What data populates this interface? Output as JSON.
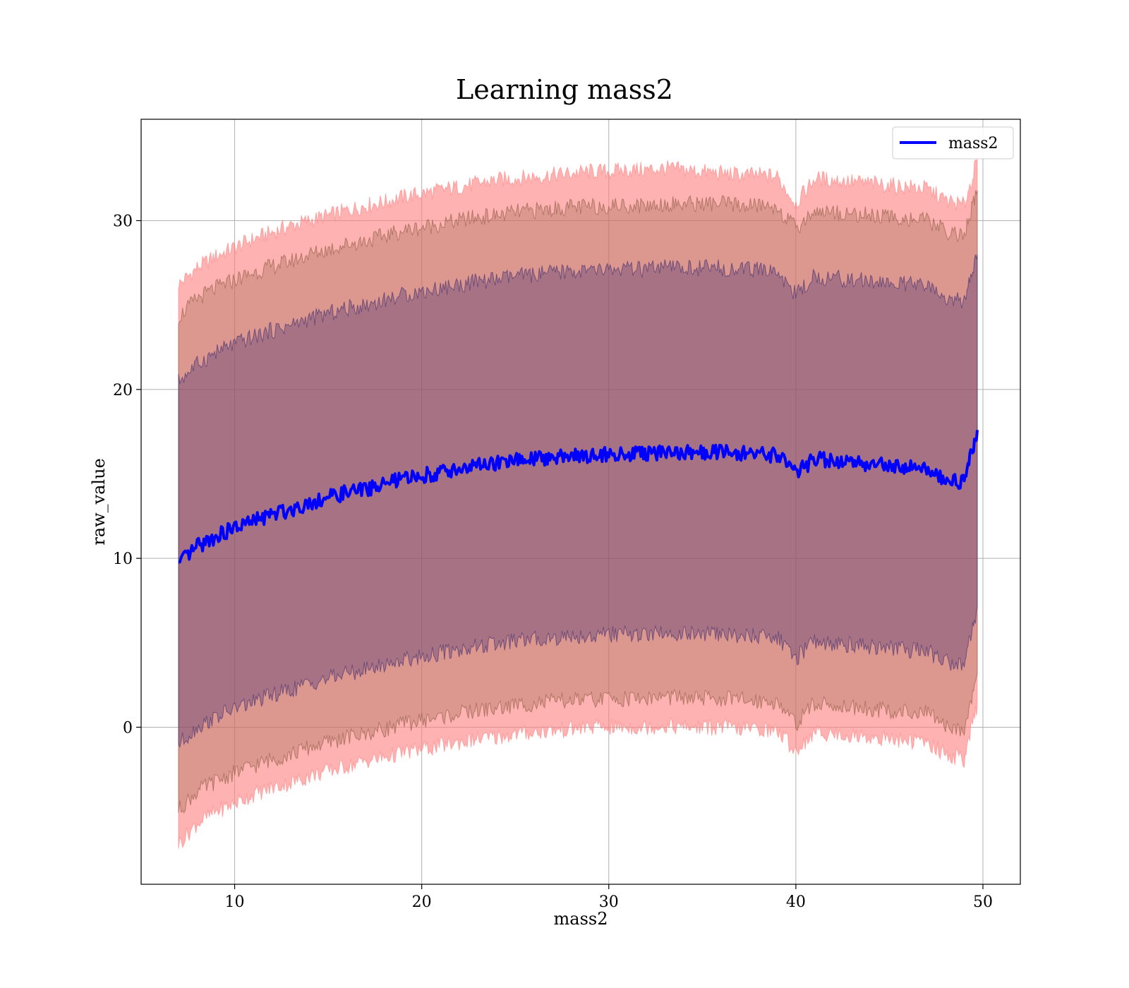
{
  "chart_data": {
    "type": "area",
    "title": "Learning mass2",
    "xlabel": "mass2",
    "ylabel": "raw_value",
    "xlim": [
      5,
      52
    ],
    "ylim": [
      -9.3,
      36
    ],
    "xticks": [
      10,
      20,
      30,
      40,
      50
    ],
    "yticks": [
      0,
      10,
      20,
      30
    ],
    "grid": true,
    "legend_position": "top-right",
    "colors": {
      "line": "#0000ff",
      "outer_band": "#ff7f7f",
      "middle_band": "#c4906f",
      "inner_band": "#a0707a",
      "grid": "#b0b0b0"
    },
    "x": [
      7,
      8,
      9,
      10,
      11,
      12,
      13,
      14,
      15,
      16,
      17,
      18,
      19,
      20,
      21,
      22,
      23,
      24,
      25,
      26,
      27,
      28,
      29,
      30,
      31,
      32,
      33,
      34,
      35,
      36,
      37,
      38,
      39,
      40,
      41,
      42,
      43,
      44,
      45,
      46,
      47,
      48,
      49,
      49.7
    ],
    "series": [
      {
        "name": "mass2",
        "role": "mean",
        "values": [
          9.6,
          10.7,
          11.3,
          11.8,
          12.2,
          12.6,
          12.9,
          13.3,
          13.6,
          13.9,
          14.1,
          14.4,
          14.7,
          14.9,
          15.1,
          15.3,
          15.5,
          15.6,
          15.8,
          15.9,
          16.0,
          16.1,
          16.1,
          16.2,
          16.2,
          16.2,
          16.3,
          16.3,
          16.3,
          16.3,
          16.2,
          16.2,
          16.1,
          15.0,
          15.9,
          15.8,
          15.7,
          15.6,
          15.5,
          15.4,
          15.3,
          14.7,
          14.5,
          17.6
        ]
      },
      {
        "role": "band_outer_upper",
        "values": [
          26.2,
          27.2,
          27.9,
          28.4,
          28.9,
          29.3,
          29.7,
          30.0,
          30.3,
          30.6,
          30.9,
          31.1,
          31.4,
          31.6,
          31.8,
          32.0,
          32.2,
          32.4,
          32.5,
          32.6,
          32.7,
          32.8,
          32.9,
          32.9,
          33.0,
          33.0,
          33.1,
          33.0,
          32.9,
          32.8,
          32.7,
          32.7,
          32.6,
          31.0,
          32.5,
          32.4,
          32.3,
          32.2,
          32.1,
          32.0,
          31.9,
          31.2,
          30.9,
          33.6
        ]
      },
      {
        "role": "band_outer_lower",
        "values": [
          -6.9,
          -5.7,
          -5.0,
          -4.5,
          -4.0,
          -3.6,
          -3.3,
          -2.9,
          -2.6,
          -2.3,
          -2.0,
          -1.8,
          -1.5,
          -1.3,
          -1.1,
          -0.9,
          -0.7,
          -0.6,
          -0.4,
          -0.3,
          -0.2,
          -0.1,
          0.0,
          0.0,
          0.0,
          0.0,
          0.1,
          0.0,
          0.0,
          0.0,
          -0.1,
          -0.1,
          -0.2,
          -1.4,
          -0.3,
          -0.4,
          -0.5,
          -0.6,
          -0.7,
          -0.8,
          -0.9,
          -1.6,
          -1.9,
          1.3
        ]
      },
      {
        "role": "band_middle_upper",
        "values": [
          24.3,
          25.4,
          26.0,
          26.5,
          26.9,
          27.3,
          27.6,
          28.0,
          28.3,
          28.6,
          28.8,
          29.1,
          29.4,
          29.6,
          29.8,
          30.0,
          30.2,
          30.3,
          30.5,
          30.6,
          30.7,
          30.8,
          30.8,
          30.9,
          30.9,
          30.9,
          31.0,
          31.0,
          31.0,
          31.0,
          30.9,
          30.9,
          30.8,
          29.5,
          30.6,
          30.5,
          30.4,
          30.3,
          30.2,
          30.1,
          30.0,
          29.4,
          29.1,
          31.8
        ]
      },
      {
        "role": "band_middle_lower",
        "values": [
          -4.9,
          -3.8,
          -3.2,
          -2.7,
          -2.3,
          -1.9,
          -1.6,
          -1.2,
          -0.9,
          -0.6,
          -0.4,
          -0.1,
          0.2,
          0.4,
          0.6,
          0.8,
          1.0,
          1.1,
          1.3,
          1.4,
          1.5,
          1.6,
          1.6,
          1.7,
          1.7,
          1.7,
          1.8,
          1.7,
          1.7,
          1.7,
          1.6,
          1.6,
          1.5,
          0.2,
          1.4,
          1.3,
          1.2,
          1.1,
          1.0,
          0.9,
          0.8,
          0.1,
          -0.1,
          3.2
        ]
      },
      {
        "role": "band_inner_upper",
        "values": [
          20.5,
          21.5,
          22.2,
          22.7,
          23.1,
          23.5,
          23.8,
          24.2,
          24.5,
          24.8,
          25.0,
          25.3,
          25.6,
          25.8,
          26.0,
          26.2,
          26.4,
          26.5,
          26.7,
          26.8,
          26.9,
          27.0,
          27.0,
          27.1,
          27.1,
          27.1,
          27.2,
          27.2,
          27.2,
          27.2,
          27.1,
          27.1,
          27.0,
          25.6,
          26.7,
          26.6,
          26.5,
          26.4,
          26.3,
          26.2,
          26.1,
          25.4,
          25.2,
          28.0
        ]
      },
      {
        "role": "band_inner_lower",
        "values": [
          -1.0,
          0.0,
          0.6,
          1.1,
          1.5,
          1.9,
          2.2,
          2.6,
          2.9,
          3.2,
          3.4,
          3.7,
          4.0,
          4.2,
          4.4,
          4.6,
          4.8,
          4.9,
          5.1,
          5.2,
          5.3,
          5.4,
          5.4,
          5.5,
          5.5,
          5.5,
          5.6,
          5.5,
          5.5,
          5.5,
          5.4,
          5.4,
          5.3,
          4.1,
          5.1,
          5.0,
          4.9,
          4.8,
          4.7,
          4.6,
          4.5,
          3.9,
          3.7,
          7.1
        ]
      }
    ]
  }
}
